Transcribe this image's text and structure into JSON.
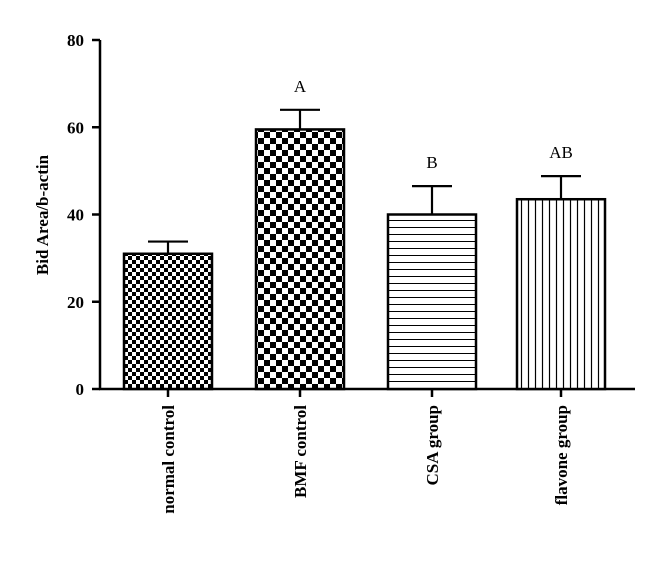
{
  "chart_data": {
    "type": "bar",
    "categories": [
      "normal control",
      "BMF control",
      "CSA group",
      "flavone group"
    ],
    "values": [
      31,
      59.5,
      40,
      43.5
    ],
    "errors": [
      2.8,
      4.5,
      6.5,
      5.3
    ],
    "annotations": [
      "",
      "A",
      "B",
      "AB"
    ],
    "patterns": [
      "small-checker",
      "large-checker",
      "horizontal-lines",
      "vertical-lines"
    ],
    "ylabel": "Bid Area/b-actin",
    "ylim": [
      0,
      80
    ],
    "yticks": [
      "0",
      "20",
      "40",
      "60",
      "80"
    ],
    "grid": false,
    "legend": false
  }
}
